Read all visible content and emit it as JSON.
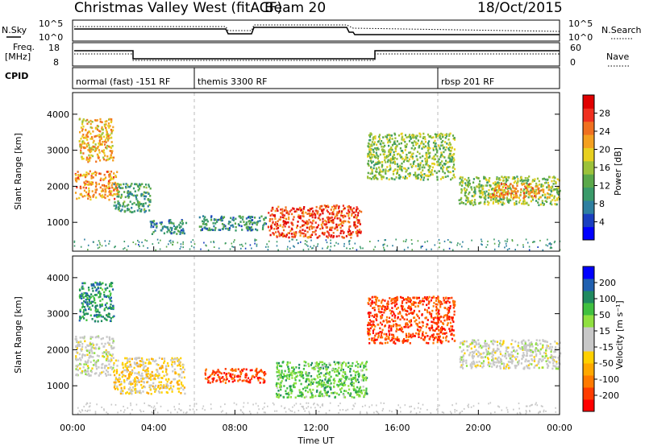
{
  "header": {
    "station": "Christmas Valley West (fitACF)",
    "beam": "Beam 20",
    "date": "18/Oct/2015"
  },
  "status_panels": {
    "nsky_label": "N.Sky",
    "nsearch_label": "N.Search",
    "noise_ticks": [
      "10^5",
      "10^0"
    ],
    "freq_label_1": "Freq.",
    "freq_label_2": "[MHz]",
    "freq_ticks": [
      "18",
      "8"
    ],
    "nave_ticks": [
      "60",
      "0"
    ],
    "nave_label": "Nave",
    "cpid_label": "CPID",
    "cpid_segments": [
      {
        "label": "normal (fast) -151 RF",
        "start_h": 0,
        "end_h": 6
      },
      {
        "label": "themis 3300 RF",
        "start_h": 6,
        "end_h": 18
      },
      {
        "label": "rbsp 201 RF",
        "start_h": 18,
        "end_h": 24
      }
    ]
  },
  "colorbars": {
    "power": {
      "label": "Power [dB]",
      "ticks": [
        "28",
        "24",
        "20",
        "16",
        "12",
        "8",
        "4"
      ],
      "colors": [
        "#0000ff",
        "#1a3fc0",
        "#2e7fa0",
        "#3a9a6a",
        "#5aa84a",
        "#9cc23a",
        "#e8d020",
        "#f4a020",
        "#f07020",
        "#f03020",
        "#e00000"
      ]
    },
    "velocity": {
      "label": "Velocity [m s⁻¹]",
      "ticks": [
        "200",
        "100",
        "50",
        "15",
        "-15",
        "-50",
        "-100",
        "-200"
      ],
      "colors": [
        "#ff0000",
        "#ff3c00",
        "#ff7a00",
        "#ffa800",
        "#ffd000",
        "#c8c8c8",
        "#c8c8c8",
        "#90e040",
        "#40c040",
        "#208a60",
        "#2060b0",
        "#0000ff"
      ]
    }
  },
  "axes": {
    "ylabel": "Slant Range [km]",
    "xlabel": "Time UT",
    "yticks": [
      "4000",
      "3000",
      "2000",
      "1000"
    ],
    "xticks": [
      "00:00",
      "04:00",
      "08:00",
      "12:00",
      "16:00",
      "20:00",
      "00:00"
    ]
  },
  "chart_data": [
    {
      "type": "heatmap",
      "title": "Power",
      "xlabel": "",
      "ylabel": "Slant Range [km]",
      "xlim_hours": [
        0,
        24
      ],
      "ylim_km": [
        200,
        4600
      ],
      "regions": [
        {
          "t0": 0.1,
          "t1": 2.2,
          "r0": 1650,
          "r1": 2450,
          "level": 22
        },
        {
          "t0": 0.3,
          "t1": 2.0,
          "r0": 2700,
          "r1": 3900,
          "level": 20
        },
        {
          "t0": 2.0,
          "t1": 3.8,
          "r0": 1300,
          "r1": 2100,
          "level": 10
        },
        {
          "t0": 3.8,
          "t1": 5.6,
          "r0": 700,
          "r1": 1100,
          "level": 8
        },
        {
          "t0": 6.2,
          "t1": 9.5,
          "r0": 800,
          "r1": 1200,
          "level": 8
        },
        {
          "t0": 9.6,
          "t1": 14.2,
          "r0": 600,
          "r1": 1500,
          "level": 26
        },
        {
          "t0": 14.5,
          "t1": 18.8,
          "r0": 2200,
          "r1": 3500,
          "level": 14
        },
        {
          "t0": 19.0,
          "t1": 24.0,
          "r0": 1500,
          "r1": 2300,
          "level": 14
        },
        {
          "t0": 20.5,
          "t1": 23.5,
          "r0": 1700,
          "r1": 2100,
          "level": 22
        }
      ]
    },
    {
      "type": "heatmap",
      "title": "Velocity",
      "xlabel": "Time UT",
      "ylabel": "Slant Range [km]",
      "xlim_hours": [
        0,
        24
      ],
      "ylim_km": [
        200,
        4600
      ],
      "regions": [
        {
          "t0": 0.1,
          "t1": 2.0,
          "r0": 1300,
          "r1": 2400,
          "level": 0
        },
        {
          "t0": 0.3,
          "t1": 2.0,
          "r0": 2800,
          "r1": 3900,
          "level": 150
        },
        {
          "t0": 2.0,
          "t1": 5.5,
          "r0": 800,
          "r1": 1800,
          "level": -60
        },
        {
          "t0": 6.5,
          "t1": 9.5,
          "r0": 1100,
          "r1": 1500,
          "level": -200
        },
        {
          "t0": 10.0,
          "t1": 14.5,
          "r0": 700,
          "r1": 1700,
          "level": 100
        },
        {
          "t0": 14.5,
          "t1": 18.8,
          "r0": 2200,
          "r1": 3500,
          "level": -200
        },
        {
          "t0": 19.0,
          "t1": 24.0,
          "r0": 1500,
          "r1": 2300,
          "level": 0
        }
      ]
    }
  ]
}
